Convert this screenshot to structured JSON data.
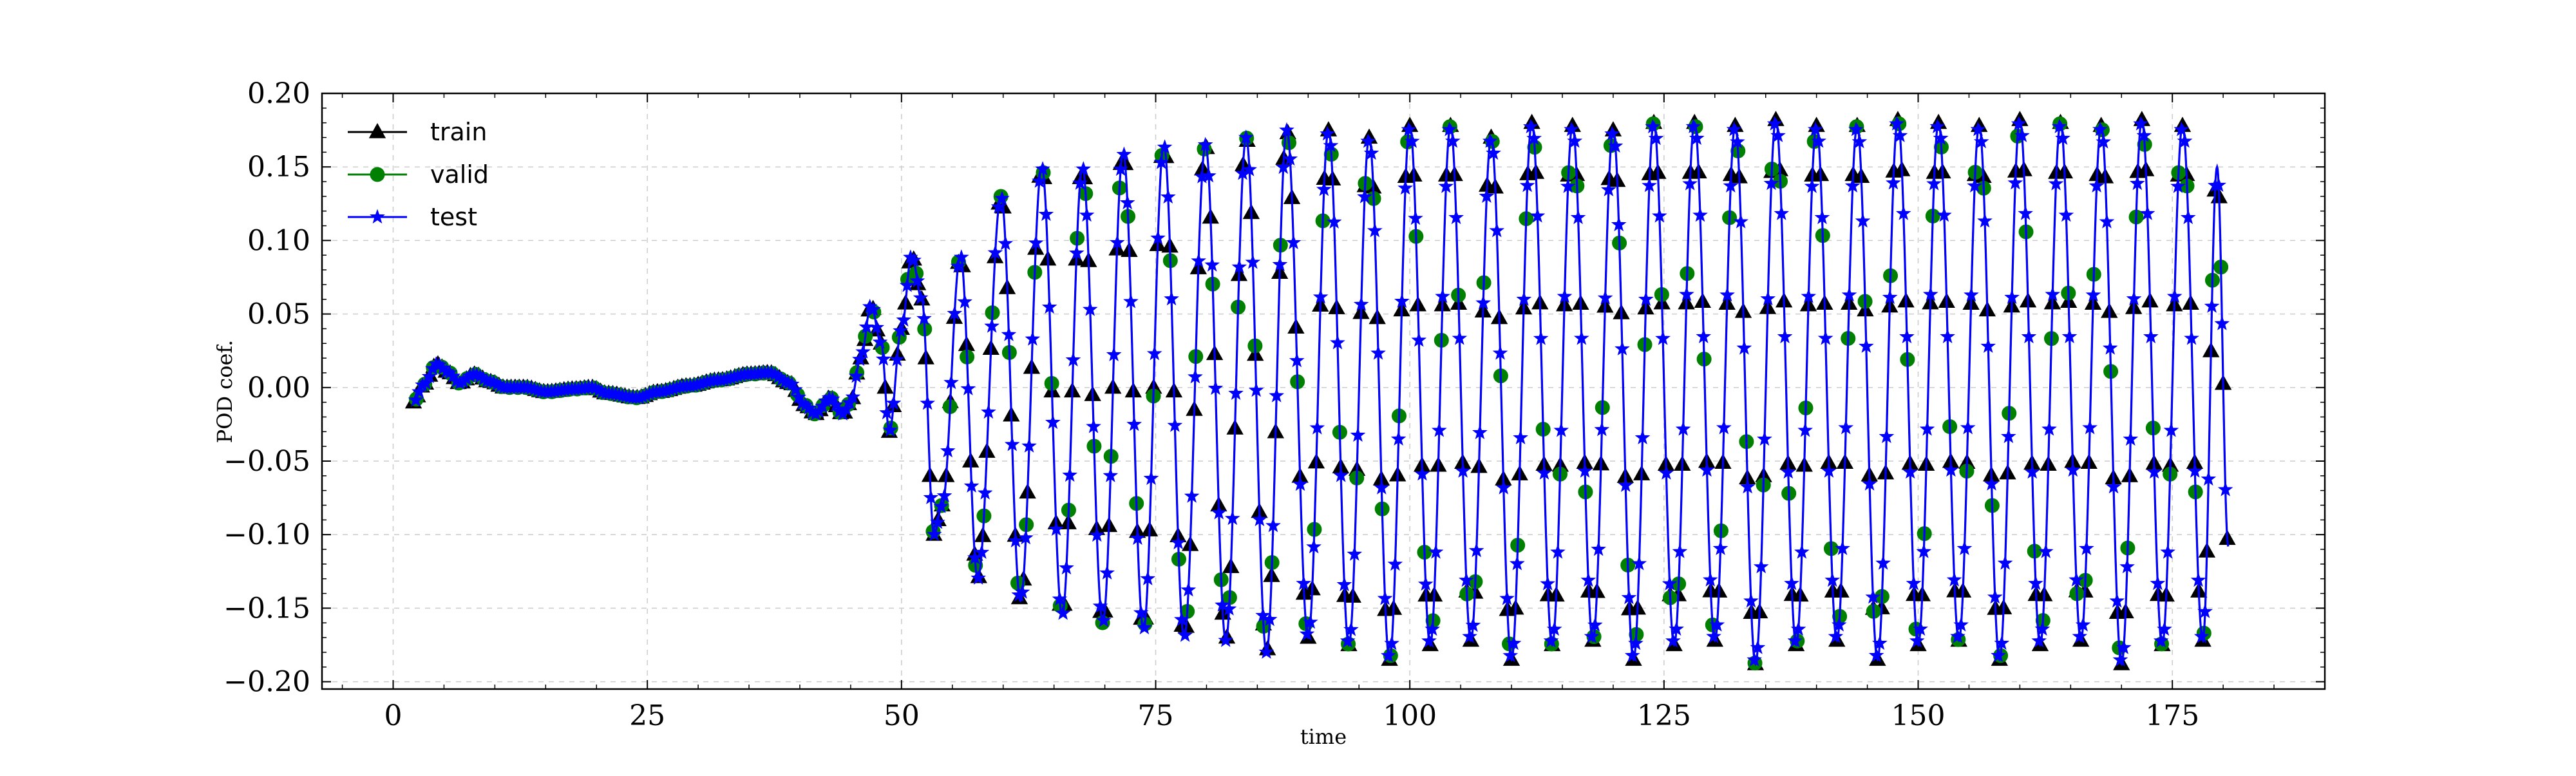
{
  "chart_data": {
    "type": "line",
    "title": "",
    "xlabel": "time",
    "ylabel": "POD coef.",
    "xlim": [
      -7,
      190
    ],
    "ylim": [
      -0.205,
      0.2
    ],
    "xticks": [
      0,
      25,
      50,
      75,
      100,
      125,
      150,
      175
    ],
    "yticks": [
      -0.2,
      -0.15,
      -0.1,
      -0.05,
      0.0,
      0.05,
      0.1,
      0.15,
      0.2
    ],
    "xtick_labels": [
      "0",
      "25",
      "50",
      "75",
      "100",
      "125",
      "150",
      "175"
    ],
    "ytick_labels": [
      "−0.20",
      "−0.15",
      "−0.10",
      "−0.05",
      "0.00",
      "0.05",
      "0.10",
      "0.15",
      "0.20"
    ],
    "grid": true,
    "legend_position": "top-left",
    "series": [
      {
        "name": "train",
        "color": "#000000",
        "marker": "triangle",
        "markers_per_unit_time": 2.5
      },
      {
        "name": "valid",
        "color": "#008000",
        "marker": "circle",
        "markers_per_unit_time": 1.2
      },
      {
        "name": "test",
        "color": "#0000ff",
        "marker": "star",
        "markers_per_unit_time": 3.0
      }
    ],
    "signal": {
      "t_start": 2.0,
      "t_end": 180.5,
      "key_points": [
        [
          2.0,
          -0.01
        ],
        [
          3.0,
          0.002
        ],
        [
          4.3,
          0.016
        ],
        [
          5.5,
          0.01
        ],
        [
          6.5,
          0.003
        ],
        [
          8.0,
          0.009
        ],
        [
          9.5,
          0.004
        ],
        [
          11.0,
          0.0
        ],
        [
          13.0,
          0.0
        ],
        [
          15.0,
          -0.003
        ],
        [
          18.0,
          -0.001
        ],
        [
          19.5,
          0.0
        ],
        [
          21.0,
          -0.004
        ],
        [
          24.0,
          -0.007
        ],
        [
          26.0,
          -0.003
        ],
        [
          29.0,
          0.001
        ],
        [
          32.0,
          0.005
        ],
        [
          35.0,
          0.009
        ],
        [
          37.0,
          0.01
        ],
        [
          39.0,
          0.003
        ],
        [
          40.5,
          -0.012
        ],
        [
          41.5,
          -0.018
        ],
        [
          43.0,
          -0.007
        ],
        [
          44.2,
          -0.018
        ],
        [
          45.0,
          -0.01
        ],
        [
          46.0,
          0.02
        ],
        [
          47.0,
          0.056
        ],
        [
          48.0,
          0.03
        ],
        [
          48.8,
          -0.03
        ],
        [
          50.0,
          0.04
        ],
        [
          51.0,
          0.09
        ],
        [
          52.0,
          0.06
        ],
        [
          53.2,
          -0.1
        ],
        [
          54.0,
          -0.08
        ],
        [
          55.8,
          0.09
        ],
        [
          57.5,
          -0.13
        ],
        [
          59.8,
          0.13
        ],
        [
          61.7,
          -0.145
        ],
        [
          63.8,
          0.15
        ],
        [
          65.8,
          -0.155
        ],
        [
          67.8,
          0.15
        ],
        [
          69.8,
          -0.16
        ],
        [
          71.8,
          0.16
        ],
        [
          73.8,
          -0.165
        ],
        [
          75.8,
          0.165
        ],
        [
          77.8,
          -0.17
        ],
        [
          79.9,
          0.165
        ],
        [
          81.9,
          -0.172
        ],
        [
          83.9,
          0.17
        ],
        [
          85.9,
          -0.18
        ],
        [
          87.9,
          0.175
        ],
        [
          90.0,
          -0.17
        ],
        [
          92.0,
          0.175
        ],
        [
          94.0,
          -0.175
        ],
        [
          96.0,
          0.17
        ],
        [
          98.0,
          -0.185
        ],
        [
          100.0,
          0.178
        ],
        [
          102.0,
          -0.175
        ],
        [
          104.0,
          0.178
        ],
        [
          106.0,
          -0.172
        ],
        [
          108.0,
          0.17
        ],
        [
          110.0,
          -0.185
        ],
        [
          112.0,
          0.18
        ],
        [
          114.0,
          -0.175
        ],
        [
          116.0,
          0.178
        ],
        [
          118.0,
          -0.172
        ],
        [
          120.0,
          0.175
        ],
        [
          122.0,
          -0.185
        ],
        [
          124.0,
          0.18
        ],
        [
          126.0,
          -0.175
        ],
        [
          128.0,
          0.18
        ],
        [
          130.0,
          -0.172
        ],
        [
          132.0,
          0.178
        ],
        [
          134.0,
          -0.188
        ],
        [
          136.0,
          0.182
        ],
        [
          138.0,
          -0.175
        ],
        [
          140.0,
          0.178
        ],
        [
          142.0,
          -0.172
        ],
        [
          144.0,
          0.178
        ],
        [
          146.0,
          -0.185
        ],
        [
          148.0,
          0.182
        ],
        [
          150.0,
          -0.175
        ],
        [
          152.0,
          0.18
        ],
        [
          154.0,
          -0.172
        ],
        [
          156.0,
          0.178
        ],
        [
          158.0,
          -0.185
        ],
        [
          160.0,
          0.182
        ],
        [
          162.0,
          -0.175
        ],
        [
          164.0,
          0.18
        ],
        [
          166.0,
          -0.172
        ],
        [
          168.0,
          0.178
        ],
        [
          170.0,
          -0.188
        ],
        [
          172.0,
          0.182
        ],
        [
          174.0,
          -0.175
        ],
        [
          176.0,
          0.178
        ],
        [
          178.0,
          -0.172
        ],
        [
          179.4,
          0.15
        ],
        [
          180.5,
          -0.108
        ]
      ]
    }
  }
}
